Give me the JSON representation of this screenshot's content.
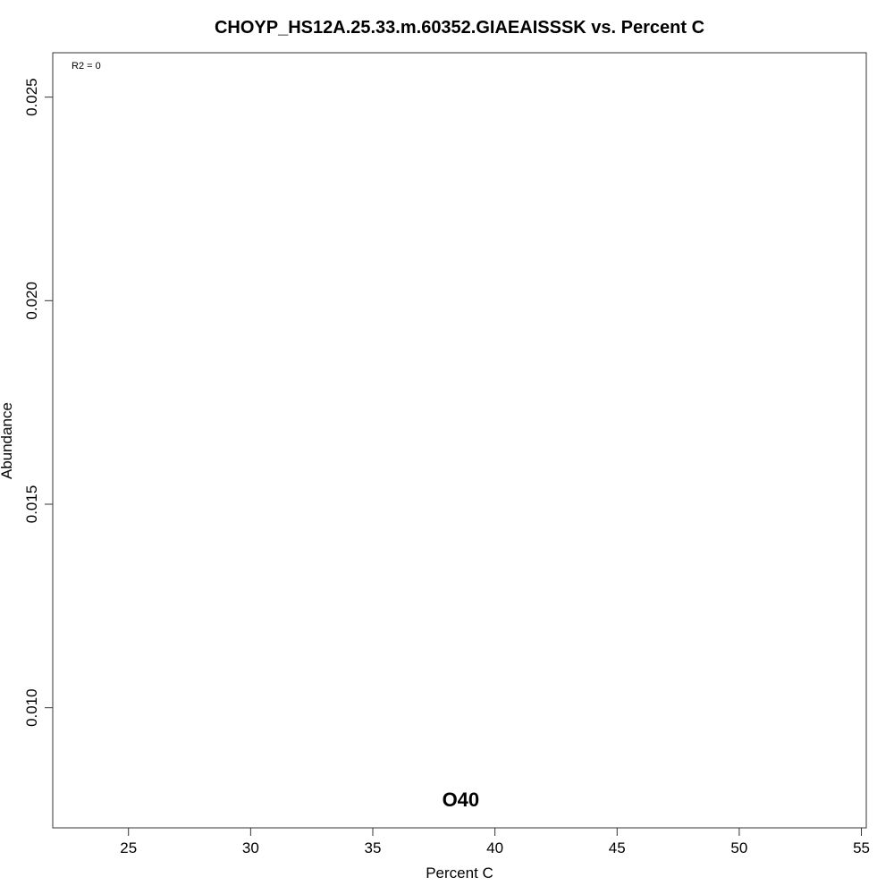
{
  "chart_data": {
    "type": "scatter",
    "title": "CHOYP_HS12A.25.33.m.60352.GIAEAISSSK vs. Percent C",
    "xlabel": "Percent C",
    "ylabel": "Abundance",
    "xlim": [
      21.9,
      55.2
    ],
    "ylim": [
      0.00705,
      0.02609
    ],
    "x_ticks": [
      25,
      30,
      35,
      40,
      45,
      50,
      55
    ],
    "x_tick_labels": [
      "25",
      "30",
      "35",
      "40",
      "45",
      "50",
      "55"
    ],
    "y_ticks": [
      0.01,
      0.015,
      0.02,
      0.025
    ],
    "y_tick_labels": [
      "0.010",
      "0.015",
      "0.020",
      "0.025"
    ],
    "annotation": "R2 = 0",
    "points": [
      {
        "label": "O40",
        "x": 38.6,
        "y": 0.00771
      }
    ],
    "grid": false,
    "legend": "none"
  }
}
